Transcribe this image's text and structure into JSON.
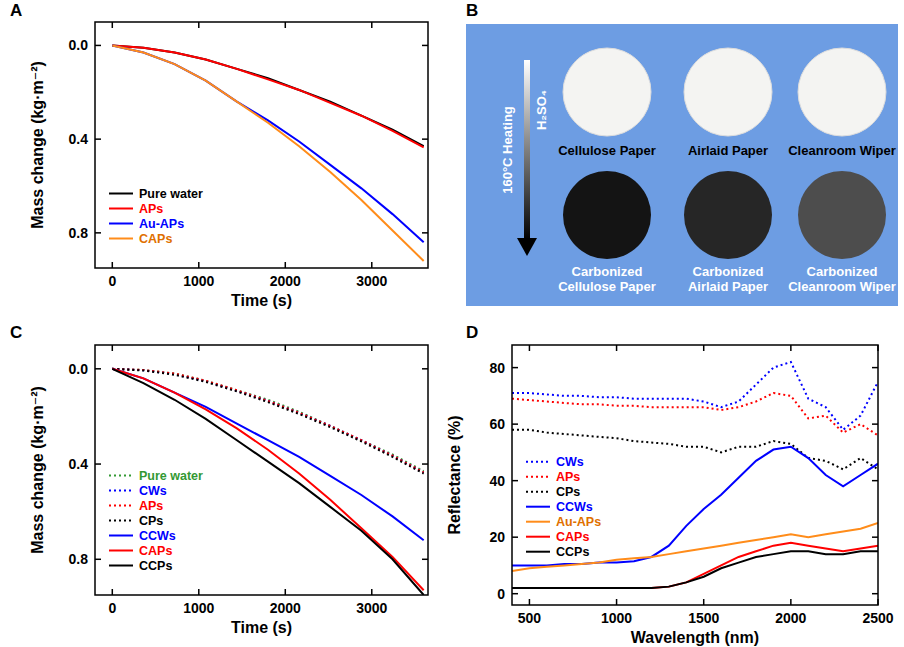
{
  "chart_data": [
    {
      "panel": "A",
      "type": "line",
      "x_label": "Time (s)",
      "y_label": "Mass change (kg·m⁻²)",
      "x": [
        0,
        360,
        720,
        1080,
        1440,
        1800,
        2160,
        2520,
        2880,
        3240,
        3600
      ],
      "xlim": [
        -200,
        3650
      ],
      "xticks": [
        0,
        1000,
        2000,
        3000
      ],
      "ylim": [
        0.95,
        -0.1
      ],
      "yticks": [
        {
          "value": 0,
          "label": "0.0"
        },
        0.4,
        0.8
      ],
      "legend": "lower left",
      "series": [
        {
          "name": "Pure water",
          "color": "#000000",
          "line_style": "solid",
          "values": [
            0,
            0.01,
            0.03,
            0.06,
            0.1,
            0.14,
            0.19,
            0.24,
            0.3,
            0.36,
            0.43
          ]
        },
        {
          "name": "APs",
          "color": "#ff0000",
          "line_style": "solid",
          "values": [
            0,
            0.01,
            0.03,
            0.06,
            0.1,
            0.145,
            0.19,
            0.245,
            0.3,
            0.365,
            0.435
          ]
        },
        {
          "name": "Au-APs",
          "color": "#0000ff",
          "line_style": "solid",
          "values": [
            0,
            0.03,
            0.08,
            0.15,
            0.24,
            0.32,
            0.41,
            0.51,
            0.61,
            0.72,
            0.84
          ]
        },
        {
          "name": "CAPs",
          "color": "#ff8c1a",
          "line_style": "solid",
          "values": [
            0,
            0.03,
            0.08,
            0.15,
            0.24,
            0.33,
            0.43,
            0.54,
            0.66,
            0.79,
            0.92
          ]
        }
      ]
    },
    {
      "panel": "C",
      "type": "line",
      "x_label": "Time (s)",
      "y_label": "Mass change (kg·m⁻²)",
      "x": [
        0,
        360,
        720,
        1080,
        1440,
        1800,
        2160,
        2520,
        2880,
        3240,
        3600
      ],
      "xlim": [
        -200,
        3650
      ],
      "xticks": [
        0,
        1000,
        2000,
        3000
      ],
      "ylim": [
        0.95,
        -0.1
      ],
      "yticks": [
        {
          "value": 0,
          "label": "0.0"
        },
        0.4,
        0.8
      ],
      "legend": "lower left",
      "series": [
        {
          "name": "Pure water",
          "color": "#339933",
          "line_style": "dotted",
          "values": [
            0,
            0.005,
            0.02,
            0.05,
            0.09,
            0.13,
            0.18,
            0.24,
            0.3,
            0.36,
            0.43
          ]
        },
        {
          "name": "CWs",
          "color": "#0000ff",
          "line_style": "dotted",
          "values": [
            0,
            0.006,
            0.022,
            0.052,
            0.092,
            0.135,
            0.185,
            0.24,
            0.3,
            0.365,
            0.435
          ]
        },
        {
          "name": "APs",
          "color": "#ff0000",
          "line_style": "dotted",
          "values": [
            0,
            0.005,
            0.02,
            0.05,
            0.09,
            0.135,
            0.185,
            0.24,
            0.3,
            0.365,
            0.435
          ]
        },
        {
          "name": "CPs",
          "color": "#000000",
          "line_style": "dotted",
          "values": [
            0,
            0.007,
            0.025,
            0.055,
            0.095,
            0.14,
            0.19,
            0.245,
            0.305,
            0.37,
            0.44
          ]
        },
        {
          "name": "CCWs",
          "color": "#0000ff",
          "line_style": "solid",
          "values": [
            0,
            0.04,
            0.1,
            0.16,
            0.23,
            0.3,
            0.37,
            0.45,
            0.53,
            0.62,
            0.72
          ]
        },
        {
          "name": "CAPs",
          "color": "#ff0000",
          "line_style": "solid",
          "values": [
            0,
            0.04,
            0.1,
            0.17,
            0.25,
            0.34,
            0.44,
            0.55,
            0.67,
            0.79,
            0.93
          ]
        },
        {
          "name": "CCPs",
          "color": "#000000",
          "line_style": "solid",
          "values": [
            0,
            0.06,
            0.13,
            0.21,
            0.3,
            0.39,
            0.48,
            0.58,
            0.68,
            0.8,
            0.95
          ]
        }
      ]
    },
    {
      "panel": "D",
      "type": "line",
      "x_label": "Wavelength (nm)",
      "y_label": "Reflectance (%)",
      "x": [
        400,
        500,
        600,
        700,
        800,
        900,
        1000,
        1100,
        1200,
        1300,
        1400,
        1500,
        1600,
        1700,
        1800,
        1900,
        2000,
        2100,
        2200,
        2300,
        2400,
        2500
      ],
      "xlim": [
        400,
        2500
      ],
      "xticks": [
        500,
        1000,
        1500,
        2000,
        2500
      ],
      "ylim": [
        -4,
        88
      ],
      "yticks": [
        0,
        20,
        40,
        60,
        80
      ],
      "legend": "center left",
      "series": [
        {
          "name": "CWs",
          "color": "#0000ff",
          "line_style": "dotted",
          "values": [
            71,
            71,
            70.5,
            70,
            70,
            69.5,
            69.5,
            69,
            69,
            69,
            69,
            68,
            66,
            68,
            74,
            80,
            82,
            69,
            66,
            58,
            63,
            75
          ]
        },
        {
          "name": "APs",
          "color": "#ff0000",
          "line_style": "dotted",
          "values": [
            69,
            68.5,
            68,
            67.5,
            67,
            67,
            66.5,
            66.5,
            66,
            66,
            66,
            66,
            65,
            66,
            68,
            71,
            70,
            62,
            63,
            57,
            60,
            56
          ]
        },
        {
          "name": "CPs",
          "color": "#000000",
          "line_style": "dotted",
          "values": [
            58,
            58,
            57,
            56.5,
            56,
            55.5,
            55,
            54,
            53.5,
            53,
            52,
            52,
            50,
            52,
            52,
            54,
            53,
            48,
            47,
            44,
            48,
            44
          ]
        },
        {
          "name": "CCWs",
          "color": "#0000ff",
          "line_style": "solid",
          "values": [
            10,
            10,
            10,
            10.5,
            10.5,
            11,
            11,
            11.5,
            13,
            17,
            24,
            30,
            35,
            41,
            47,
            51,
            52,
            48,
            42,
            38,
            42,
            46
          ]
        },
        {
          "name": "Au-APs",
          "color": "#ff8c1a",
          "line_style": "solid",
          "values": [
            8,
            9,
            9.5,
            10,
            10.5,
            11,
            12,
            12.5,
            13,
            14,
            15,
            16,
            17,
            18,
            19,
            20,
            21,
            20,
            21,
            22,
            23,
            25
          ]
        },
        {
          "name": "CAPs",
          "color": "#ff0000",
          "line_style": "solid",
          "values": [
            2,
            2,
            2,
            2,
            2,
            2,
            2,
            2,
            2,
            2.5,
            4,
            7,
            10,
            13,
            15,
            17,
            18,
            17,
            16,
            15,
            16,
            17
          ]
        },
        {
          "name": "CCPs",
          "color": "#000000",
          "line_style": "solid",
          "values": [
            2,
            2,
            2,
            2,
            2,
            2,
            2,
            2,
            2,
            2.5,
            4,
            6,
            9,
            11,
            13,
            14,
            15,
            15,
            14,
            14,
            15,
            15
          ]
        }
      ]
    }
  ],
  "panel_b": {
    "panel": "B",
    "arrow_labels": [
      "H₂SO₄",
      "160°C Heating"
    ],
    "samples": [
      {
        "before": "Cellulose Paper",
        "after": "Carbonized Cellulose Paper",
        "color": "#141414"
      },
      {
        "before": "Airlaid Paper",
        "after": "Carbonized Airlaid Paper",
        "color": "#262626"
      },
      {
        "before": "Cleanroom Wiper",
        "after": "Carbonized Cleanroom Wiper",
        "color": "#4d4d4d"
      }
    ]
  }
}
